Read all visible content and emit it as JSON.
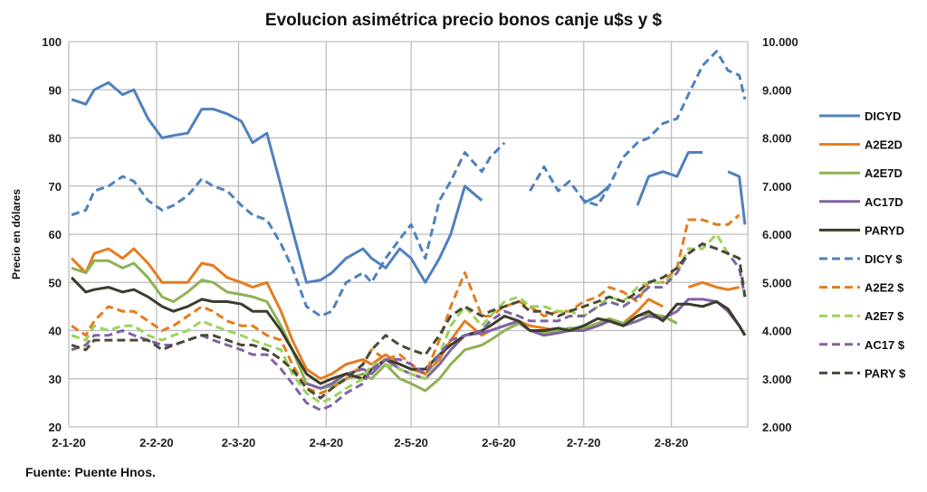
{
  "chart_data": {
    "type": "line",
    "title": "Evolucion asimétrica precio bonos canje u$s y $",
    "ylabel": "Precio en dólares",
    "source": "Fuente: Puente Hnos.",
    "ylim": [
      20,
      100
    ],
    "yticks": [
      "20",
      "30",
      "40",
      "50",
      "60",
      "70",
      "80",
      "90",
      "100"
    ],
    "y2lim": [
      2000,
      10000
    ],
    "y2ticks": [
      "2.000",
      "3.000",
      "4.000",
      "5.000",
      "6.000",
      "7.000",
      "8.000",
      "9.000",
      "10.000"
    ],
    "xlim": [
      "2020-01-01",
      "2020-08-28"
    ],
    "xticks": [
      {
        "date": "2020-01-01",
        "label": "2-1-20"
      },
      {
        "date": "2020-02-01",
        "label": "2-2-20"
      },
      {
        "date": "2020-03-01",
        "label": "2-3-20"
      },
      {
        "date": "2020-04-01",
        "label": "2-4-20"
      },
      {
        "date": "2020-05-01",
        "label": "2-5-20"
      },
      {
        "date": "2020-06-01",
        "label": "2-6-20"
      },
      {
        "date": "2020-07-01",
        "label": "2-7-20"
      },
      {
        "date": "2020-08-01",
        "label": "2-8-20"
      }
    ],
    "grid": true,
    "legend_position": "right",
    "x": [
      "2020-01-02",
      "2020-01-07",
      "2020-01-10",
      "2020-01-15",
      "2020-01-20",
      "2020-01-24",
      "2020-01-29",
      "2020-02-03",
      "2020-02-07",
      "2020-02-12",
      "2020-02-17",
      "2020-02-21",
      "2020-02-26",
      "2020-03-02",
      "2020-03-06",
      "2020-03-11",
      "2020-03-16",
      "2020-03-20",
      "2020-03-25",
      "2020-03-30",
      "2020-04-03",
      "2020-04-08",
      "2020-04-14",
      "2020-04-17",
      "2020-04-22",
      "2020-04-27",
      "2020-05-01",
      "2020-05-06",
      "2020-05-11",
      "2020-05-15",
      "2020-05-20",
      "2020-05-26",
      "2020-05-29",
      "2020-06-03",
      "2020-06-08",
      "2020-06-12",
      "2020-06-17",
      "2020-06-22",
      "2020-06-26",
      "2020-07-01",
      "2020-07-06",
      "2020-07-10",
      "2020-07-15",
      "2020-07-20",
      "2020-07-24",
      "2020-07-29",
      "2020-08-03",
      "2020-08-07",
      "2020-08-12",
      "2020-08-17",
      "2020-08-21",
      "2020-08-25",
      "2020-08-27"
    ],
    "series": [
      {
        "name": "DICYD",
        "axis": "left",
        "color": "#4f81bd",
        "dash": false,
        "values": [
          88,
          87,
          90,
          91.5,
          89,
          90,
          84,
          80,
          80.5,
          81,
          86,
          86,
          85,
          83.5,
          79,
          81,
          70,
          61,
          50,
          50.5,
          52,
          55,
          57,
          55,
          53,
          57,
          55,
          50,
          55,
          60,
          70,
          67,
          null,
          null,
          null,
          null,
          null,
          null,
          null,
          66.5,
          68,
          70,
          null,
          66,
          72,
          73,
          72,
          77,
          77,
          null,
          73,
          72,
          62
        ]
      },
      {
        "name": "A2E2D",
        "axis": "left",
        "color": "#e57c1f",
        "dash": false,
        "values": [
          55,
          52,
          56,
          57,
          55,
          57,
          54,
          50,
          50,
          50,
          54,
          53.5,
          51,
          50,
          49,
          50,
          44,
          38,
          32,
          30,
          31,
          33,
          34,
          33,
          35,
          33,
          32,
          31,
          34,
          38,
          42,
          39,
          40,
          41,
          42,
          41,
          40.5,
          40,
          40.5,
          40,
          41,
          42,
          41.5,
          44,
          46.5,
          45,
          null,
          49,
          50,
          49,
          48.5,
          49,
          null
        ]
      },
      {
        "name": "A2E7D",
        "axis": "left",
        "color": "#8db253",
        "dash": false,
        "values": [
          53,
          52,
          54.5,
          54.5,
          53,
          54,
          51,
          47,
          46,
          48,
          50.5,
          50,
          48,
          47.5,
          47,
          46,
          41,
          36,
          29,
          28,
          28.5,
          30,
          31,
          30,
          33,
          30,
          29,
          27.5,
          30,
          33,
          36,
          37,
          38,
          40,
          41.5,
          40,
          39.5,
          40,
          40.5,
          40.5,
          41.5,
          42.5,
          41.5,
          43,
          43.5,
          43,
          41.5,
          null,
          null,
          null,
          null,
          null,
          null
        ]
      },
      {
        "name": "AC17D",
        "axis": "left",
        "color": "#8064a2",
        "dash": false,
        "values": [
          null,
          null,
          null,
          null,
          null,
          null,
          null,
          null,
          null,
          null,
          null,
          null,
          null,
          null,
          null,
          null,
          null,
          null,
          29,
          28,
          29,
          31,
          32,
          31,
          34,
          32,
          31,
          30,
          33,
          36,
          39,
          39.5,
          40,
          41,
          42,
          40,
          39,
          39.5,
          40,
          40,
          41,
          42,
          41,
          42,
          43,
          42.5,
          44,
          46.5,
          46.5,
          46,
          44,
          41,
          39
        ]
      },
      {
        "name": "PARYD",
        "axis": "left",
        "color": "#3c3c2c",
        "dash": false,
        "values": [
          51,
          48,
          48.5,
          49,
          48,
          48.5,
          47,
          45,
          44,
          45,
          46.5,
          46,
          46,
          45.5,
          44,
          44,
          40,
          36,
          31,
          29,
          30,
          31,
          30,
          32,
          34,
          33,
          32,
          32,
          35,
          37,
          39,
          40,
          41,
          43,
          42,
          40,
          40,
          40.5,
          40,
          41,
          42.5,
          42,
          41,
          43,
          44,
          42,
          45.5,
          45.5,
          45,
          46,
          44.5,
          41,
          39
        ]
      },
      {
        "name": "DICY $",
        "axis": "right",
        "color": "#4f81bd",
        "dash": true,
        "values": [
          6400,
          6500,
          6900,
          7000,
          7200,
          7100,
          6700,
          6500,
          6600,
          6800,
          7150,
          7000,
          6900,
          6600,
          6400,
          6300,
          5800,
          5300,
          4500,
          4300,
          4400,
          5000,
          5200,
          5000,
          5500,
          5900,
          6200,
          5500,
          6700,
          7100,
          7700,
          7300,
          7600,
          7900,
          null,
          6900,
          7400,
          6900,
          7100,
          6700,
          6600,
          7000,
          7600,
          7900,
          8000,
          8300,
          8400,
          8900,
          9500,
          9800,
          9400,
          9300,
          8800
        ]
      },
      {
        "name": "A2E2 $",
        "axis": "right",
        "color": "#e57c1f",
        "dash": true,
        "values": [
          4100,
          3900,
          4200,
          4500,
          4400,
          4400,
          4200,
          4000,
          4100,
          4300,
          4500,
          4400,
          4200,
          4100,
          4100,
          3900,
          3800,
          3300,
          2800,
          2700,
          2800,
          3000,
          3300,
          3600,
          3400,
          3500,
          3300,
          3100,
          3800,
          4500,
          5200,
          4300,
          4300,
          4500,
          4600,
          4500,
          4300,
          4400,
          4400,
          4600,
          4700,
          4900,
          4800,
          4600,
          5000,
          5000,
          5300,
          6300,
          6300,
          6200,
          6200,
          6400,
          null
        ]
      },
      {
        "name": "A2E7 $",
        "axis": "right",
        "color": "#9bd35a",
        "dash": true,
        "values": [
          3900,
          3800,
          4100,
          4000,
          4100,
          4100,
          3900,
          3800,
          3900,
          4000,
          4200,
          4100,
          4000,
          3900,
          3800,
          3700,
          3600,
          3100,
          2700,
          2500,
          2600,
          2800,
          3000,
          3300,
          3300,
          3200,
          3100,
          3000,
          3500,
          4100,
          4500,
          4100,
          4300,
          4600,
          4700,
          4500,
          4500,
          4400,
          4400,
          4300,
          4500,
          4700,
          4600,
          4900,
          5000,
          5000,
          5200,
          5700,
          5700,
          6000,
          5600,
          5500,
          null
        ]
      },
      {
        "name": "AC17 $",
        "axis": "right",
        "color": "#8064a2",
        "dash": true,
        "values": [
          3600,
          3700,
          3900,
          3900,
          4000,
          3900,
          3800,
          3700,
          3700,
          3800,
          3900,
          3800,
          3700,
          3600,
          3500,
          3500,
          3200,
          2900,
          2500,
          2350,
          2450,
          2700,
          2900,
          3200,
          3400,
          3400,
          3300,
          3100,
          3500,
          3800,
          3900,
          4000,
          4200,
          4400,
          4300,
          4200,
          4200,
          4200,
          4300,
          4300,
          4500,
          4600,
          4500,
          4700,
          4900,
          4900,
          5200,
          5600,
          5800,
          5700,
          5600,
          5300,
          4700
        ]
      },
      {
        "name": "PARY $",
        "axis": "right",
        "color": "#4a4a36",
        "dash": true,
        "values": [
          3700,
          3600,
          3800,
          3800,
          3800,
          3800,
          3800,
          3600,
          3700,
          3800,
          3900,
          3900,
          3800,
          3700,
          3700,
          3600,
          3400,
          3200,
          2800,
          2600,
          2800,
          3000,
          3300,
          3600,
          3900,
          3700,
          3600,
          3500,
          3900,
          4300,
          4500,
          4300,
          4400,
          4500,
          4600,
          4400,
          4400,
          4300,
          4400,
          4500,
          4600,
          4700,
          4600,
          4800,
          5000,
          5100,
          5300,
          5600,
          5800,
          5700,
          5600,
          5500,
          4700
        ]
      }
    ]
  }
}
